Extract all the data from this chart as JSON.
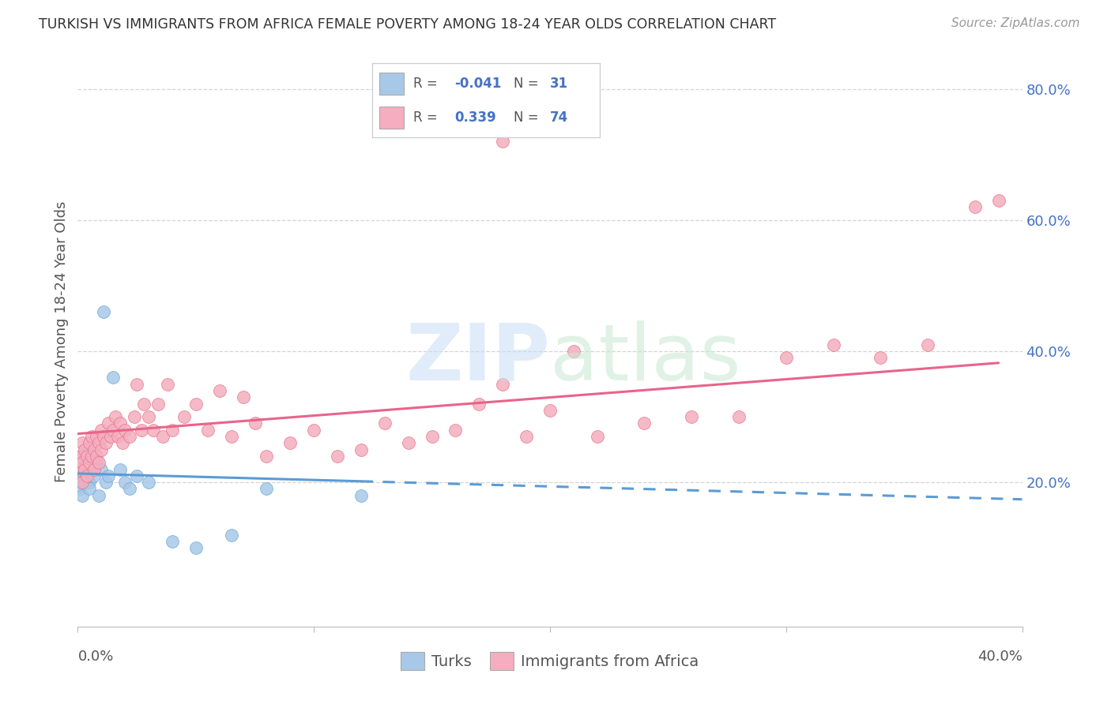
{
  "title": "TURKISH VS IMMIGRANTS FROM AFRICA FEMALE POVERTY AMONG 18-24 YEAR OLDS CORRELATION CHART",
  "source": "Source: ZipAtlas.com",
  "ylabel": "Female Poverty Among 18-24 Year Olds",
  "turks_R": -0.041,
  "turks_N": 31,
  "africa_R": 0.339,
  "africa_N": 74,
  "xlim": [
    0.0,
    0.4
  ],
  "ylim": [
    -0.02,
    0.85
  ],
  "yticks": [
    0.2,
    0.4,
    0.6,
    0.8
  ],
  "ytick_labels": [
    "20.0%",
    "40.0%",
    "60.0%",
    "80.0%"
  ],
  "turks_color": "#A8C8E8",
  "turks_edge": "#6BAED6",
  "africa_color": "#F4AEBF",
  "africa_edge": "#E8758A",
  "turks_line_color": "#5B9BD5",
  "africa_line_color": "#E8648A",
  "background_color": "#ffffff",
  "grid_color": "#d0d0d0",
  "turks_x": [
    0.001,
    0.001,
    0.001,
    0.002,
    0.002,
    0.002,
    0.003,
    0.003,
    0.004,
    0.004,
    0.005,
    0.005,
    0.006,
    0.007,
    0.008,
    0.009,
    0.01,
    0.011,
    0.012,
    0.013,
    0.015,
    0.018,
    0.02,
    0.022,
    0.025,
    0.03,
    0.04,
    0.05,
    0.065,
    0.08,
    0.12
  ],
  "turks_y": [
    0.22,
    0.2,
    0.19,
    0.24,
    0.21,
    0.18,
    0.23,
    0.2,
    0.22,
    0.25,
    0.2,
    0.19,
    0.24,
    0.21,
    0.23,
    0.18,
    0.22,
    0.46,
    0.2,
    0.21,
    0.36,
    0.22,
    0.2,
    0.19,
    0.21,
    0.2,
    0.11,
    0.1,
    0.12,
    0.19,
    0.18
  ],
  "africa_x": [
    0.001,
    0.001,
    0.002,
    0.002,
    0.002,
    0.003,
    0.003,
    0.004,
    0.004,
    0.005,
    0.005,
    0.006,
    0.006,
    0.007,
    0.007,
    0.008,
    0.008,
    0.009,
    0.009,
    0.01,
    0.01,
    0.011,
    0.012,
    0.013,
    0.014,
    0.015,
    0.016,
    0.017,
    0.018,
    0.019,
    0.02,
    0.022,
    0.024,
    0.025,
    0.027,
    0.028,
    0.03,
    0.032,
    0.034,
    0.036,
    0.038,
    0.04,
    0.045,
    0.05,
    0.055,
    0.06,
    0.065,
    0.07,
    0.075,
    0.08,
    0.09,
    0.1,
    0.11,
    0.12,
    0.13,
    0.14,
    0.15,
    0.16,
    0.17,
    0.18,
    0.19,
    0.2,
    0.21,
    0.22,
    0.24,
    0.26,
    0.28,
    0.3,
    0.32,
    0.34,
    0.36,
    0.38,
    0.39,
    0.18
  ],
  "africa_y": [
    0.24,
    0.22,
    0.26,
    0.23,
    0.2,
    0.25,
    0.22,
    0.24,
    0.21,
    0.26,
    0.23,
    0.27,
    0.24,
    0.25,
    0.22,
    0.27,
    0.24,
    0.26,
    0.23,
    0.28,
    0.25,
    0.27,
    0.26,
    0.29,
    0.27,
    0.28,
    0.3,
    0.27,
    0.29,
    0.26,
    0.28,
    0.27,
    0.3,
    0.35,
    0.28,
    0.32,
    0.3,
    0.28,
    0.32,
    0.27,
    0.35,
    0.28,
    0.3,
    0.32,
    0.28,
    0.34,
    0.27,
    0.33,
    0.29,
    0.24,
    0.26,
    0.28,
    0.24,
    0.25,
    0.29,
    0.26,
    0.27,
    0.28,
    0.32,
    0.35,
    0.27,
    0.31,
    0.4,
    0.27,
    0.29,
    0.3,
    0.3,
    0.39,
    0.41,
    0.39,
    0.41,
    0.62,
    0.63,
    0.72
  ]
}
